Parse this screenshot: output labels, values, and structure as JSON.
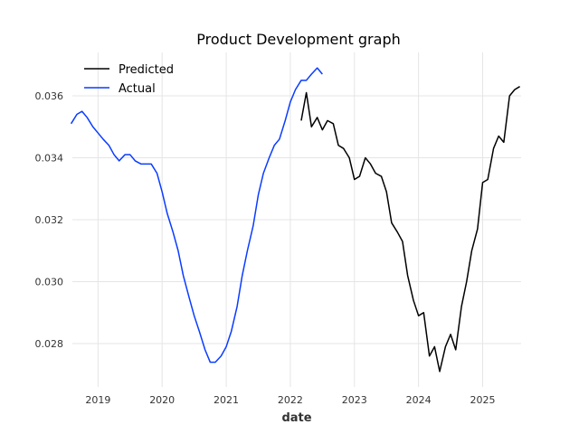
{
  "chart_data": {
    "type": "line",
    "title": "Product Development graph",
    "xlabel": "date",
    "ylabel": "",
    "x_ticks": [
      "2019",
      "2020",
      "2021",
      "2022",
      "2023",
      "2024",
      "2025"
    ],
    "y_ticks": [
      "0.028",
      "0.030",
      "0.032",
      "0.034",
      "0.036"
    ],
    "xlim": [
      2018.6,
      2025.6
    ],
    "ylim": [
      0.0266,
      0.0374
    ],
    "grid": true,
    "legend_position": "top-left",
    "series": [
      {
        "name": "Predicted",
        "color": "#000000",
        "points": [
          [
            2022.17,
            0.0352
          ],
          [
            2022.25,
            0.0361
          ],
          [
            2022.33,
            0.035
          ],
          [
            2022.42,
            0.0353
          ],
          [
            2022.5,
            0.0349
          ],
          [
            2022.58,
            0.0352
          ],
          [
            2022.67,
            0.0351
          ],
          [
            2022.75,
            0.0344
          ],
          [
            2022.83,
            0.0343
          ],
          [
            2022.92,
            0.034
          ],
          [
            2023.0,
            0.0333
          ],
          [
            2023.08,
            0.0334
          ],
          [
            2023.17,
            0.034
          ],
          [
            2023.25,
            0.0338
          ],
          [
            2023.33,
            0.0335
          ],
          [
            2023.42,
            0.0334
          ],
          [
            2023.5,
            0.0329
          ],
          [
            2023.58,
            0.0319
          ],
          [
            2023.67,
            0.0316
          ],
          [
            2023.75,
            0.0313
          ],
          [
            2023.83,
            0.0302
          ],
          [
            2023.92,
            0.0294
          ],
          [
            2024.0,
            0.0289
          ],
          [
            2024.08,
            0.029
          ],
          [
            2024.17,
            0.0276
          ],
          [
            2024.25,
            0.0279
          ],
          [
            2024.33,
            0.0271
          ],
          [
            2024.42,
            0.0279
          ],
          [
            2024.5,
            0.0283
          ],
          [
            2024.58,
            0.0278
          ],
          [
            2024.67,
            0.0292
          ],
          [
            2024.75,
            0.03
          ],
          [
            2024.83,
            0.031
          ],
          [
            2024.92,
            0.0317
          ],
          [
            2025.0,
            0.0332
          ],
          [
            2025.08,
            0.0333
          ],
          [
            2025.17,
            0.0343
          ],
          [
            2025.25,
            0.0347
          ],
          [
            2025.33,
            0.0345
          ],
          [
            2025.42,
            0.036
          ],
          [
            2025.5,
            0.0362
          ],
          [
            2025.58,
            0.0363
          ]
        ]
      },
      {
        "name": "Actual",
        "color": "#0a3cff",
        "points": [
          [
            2018.58,
            0.0351
          ],
          [
            2018.67,
            0.0354
          ],
          [
            2018.75,
            0.0355
          ],
          [
            2018.83,
            0.0353
          ],
          [
            2018.92,
            0.035
          ],
          [
            2019.0,
            0.0348
          ],
          [
            2019.08,
            0.0346
          ],
          [
            2019.17,
            0.0344
          ],
          [
            2019.25,
            0.0341
          ],
          [
            2019.33,
            0.0339
          ],
          [
            2019.42,
            0.0341
          ],
          [
            2019.5,
            0.0341
          ],
          [
            2019.58,
            0.0339
          ],
          [
            2019.67,
            0.0338
          ],
          [
            2019.75,
            0.0338
          ],
          [
            2019.83,
            0.0338
          ],
          [
            2019.92,
            0.0335
          ],
          [
            2020.0,
            0.0329
          ],
          [
            2020.08,
            0.0322
          ],
          [
            2020.17,
            0.0316
          ],
          [
            2020.25,
            0.031
          ],
          [
            2020.33,
            0.0302
          ],
          [
            2020.42,
            0.0295
          ],
          [
            2020.5,
            0.0289
          ],
          [
            2020.58,
            0.0284
          ],
          [
            2020.67,
            0.0278
          ],
          [
            2020.75,
            0.0274
          ],
          [
            2020.83,
            0.0274
          ],
          [
            2020.92,
            0.0276
          ],
          [
            2021.0,
            0.0279
          ],
          [
            2021.08,
            0.0284
          ],
          [
            2021.17,
            0.0292
          ],
          [
            2021.25,
            0.0302
          ],
          [
            2021.33,
            0.031
          ],
          [
            2021.42,
            0.0318
          ],
          [
            2021.5,
            0.0328
          ],
          [
            2021.58,
            0.0335
          ],
          [
            2021.67,
            0.034
          ],
          [
            2021.75,
            0.0344
          ],
          [
            2021.83,
            0.0346
          ],
          [
            2021.92,
            0.0352
          ],
          [
            2022.0,
            0.0358
          ],
          [
            2022.08,
            0.0362
          ],
          [
            2022.17,
            0.0365
          ],
          [
            2022.25,
            0.0365
          ],
          [
            2022.33,
            0.0367
          ],
          [
            2022.42,
            0.0369
          ],
          [
            2022.5,
            0.0367
          ]
        ]
      }
    ]
  }
}
